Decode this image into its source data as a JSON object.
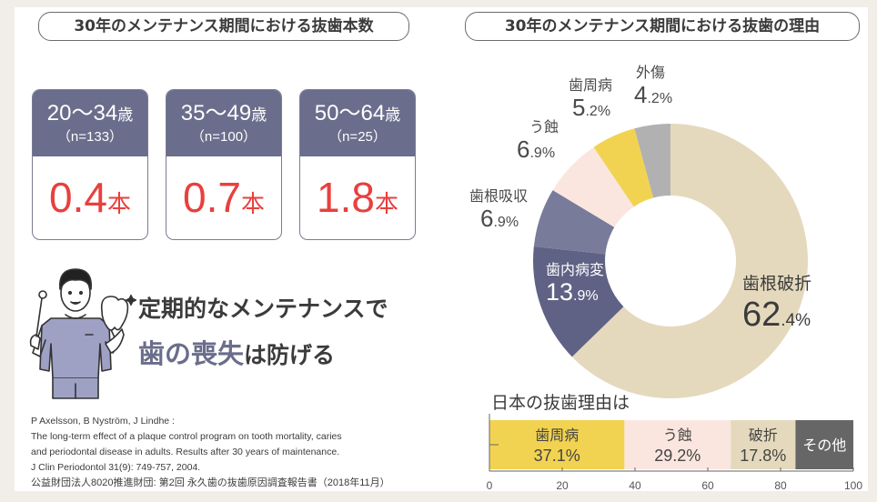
{
  "left": {
    "title": "30年のメンテナンス期間における抜歯本数",
    "cards": [
      {
        "age": "20～34",
        "age_unit": "歳",
        "n": "（n=133）",
        "value": "0.4",
        "unit": "本"
      },
      {
        "age": "35～49",
        "age_unit": "歳",
        "n": "（n=100）",
        "value": "0.7",
        "unit": "本"
      },
      {
        "age": "50～64",
        "age_unit": "歳",
        "n": "（n=25）",
        "value": "1.8",
        "unit": "本"
      }
    ],
    "message_line1": "定期的なメンテナンスで",
    "message_line2_highlight": "歯の喪失",
    "message_line2_rest": "は防げる",
    "references": [
      "P Axelsson, B Nyström, J Lindhe :",
      "The long-term effect of a plaque control program on tooth mortality, caries",
      "and periodontal disease in adults. Results after 30 years of maintenance.",
      "J Clin Periodontol 31(9): 749-757, 2004.",
      "公益財団法人8020推進財団: 第2回 永久歯の抜歯原因調査報告書（2018年11月）"
    ]
  },
  "right": {
    "title": "30年のメンテナンス期間における抜歯の理由",
    "bar_title": "日本の抜歯理由は"
  },
  "colors": {
    "navy": "#6a6d8b",
    "red": "#e8403d",
    "beige": "#e5d9bd",
    "dark_navy": "#5f6284",
    "light_navy": "#787b9a",
    "pink": "#fbe6df",
    "yellow": "#f2d351",
    "gray": "#b1b1b1",
    "dark_gray": "#666666"
  },
  "chart_data": [
    {
      "type": "pie",
      "title": "30年のメンテナンス期間における抜歯の理由",
      "donut": true,
      "slices": [
        {
          "label": "歯根破折",
          "value": 62.4,
          "int": "62",
          "dec": ".4%",
          "color": "#e5d9bd"
        },
        {
          "label": "歯内病変",
          "value": 13.9,
          "int": "13",
          "dec": ".9%",
          "color": "#5f6284"
        },
        {
          "label": "歯根吸収",
          "value": 6.9,
          "int": "6",
          "dec": ".9%",
          "color": "#787b9a"
        },
        {
          "label": "う蝕",
          "value": 6.9,
          "int": "6",
          "dec": ".9%",
          "color": "#fbe6df"
        },
        {
          "label": "歯周病",
          "value": 5.2,
          "int": "5",
          "dec": ".2%",
          "color": "#f2d351"
        },
        {
          "label": "外傷",
          "value": 4.2,
          "int": "4",
          "dec": ".2%",
          "color": "#b1b1b1"
        }
      ]
    },
    {
      "type": "bar",
      "orientation": "horizontal-stacked",
      "title": "日本の抜歯理由は",
      "xlim": [
        0,
        100
      ],
      "xticks": [
        "0",
        "20",
        "40",
        "60",
        "80",
        "100"
      ],
      "segments": [
        {
          "label": "歯周病",
          "value": 37.1,
          "text": "37.1%",
          "color": "#f2d351"
        },
        {
          "label": "う蝕",
          "value": 29.2,
          "text": "29.2%",
          "color": "#fbe6df"
        },
        {
          "label": "破折",
          "value": 17.8,
          "text": "17.8%",
          "color": "#e5d9bd"
        },
        {
          "label": "その他",
          "value": 15.9,
          "text": "",
          "color": "#666666"
        }
      ]
    }
  ]
}
